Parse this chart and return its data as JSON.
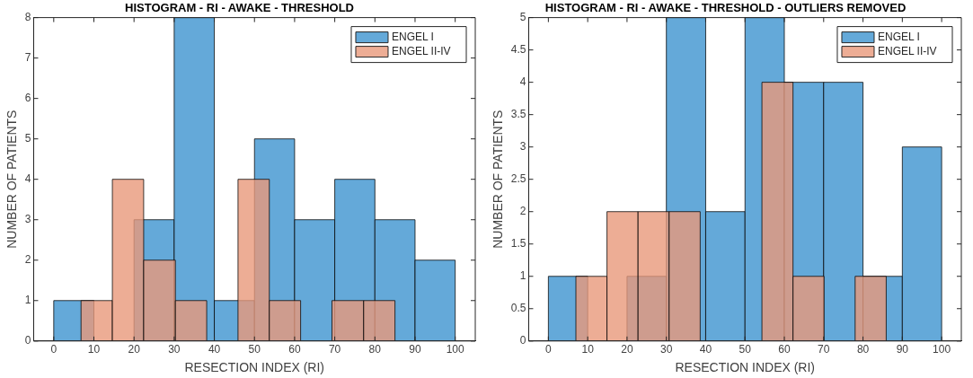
{
  "chart_data": [
    {
      "type": "histogram",
      "title": "HISTOGRAM - RI - AWAKE - THRESHOLD",
      "xlabel": "RESECTION INDEX (RI)",
      "ylabel": "NUMBER OF PATIENTS",
      "legend": "top right",
      "grid": false,
      "xlim": [
        -5,
        105
      ],
      "xticks": [
        0,
        10,
        20,
        30,
        40,
        50,
        60,
        70,
        80,
        90,
        100
      ],
      "ylim": [
        0,
        8
      ],
      "yticks": [
        0,
        1,
        2,
        3,
        4,
        5,
        6,
        7,
        8
      ],
      "bins": [
        0,
        10,
        20,
        30,
        40,
        50,
        60,
        70,
        80,
        90,
        100
      ],
      "series": [
        {
          "name": "ENGEL I",
          "color": "#64a9d9",
          "values": [
            1,
            0,
            3,
            8,
            1,
            5,
            3,
            4,
            3,
            2
          ]
        },
        {
          "name": "ENGEL II-IV",
          "color": "#e8987a",
          "bins": [
            6.8,
            14.6,
            22.4,
            30.3,
            38.1,
            45.9,
            53.7,
            61.5,
            69.3,
            77.2,
            85.0
          ],
          "values": [
            1,
            4,
            2,
            1,
            0,
            4,
            1,
            0,
            1,
            1
          ]
        }
      ]
    },
    {
      "type": "histogram",
      "title": "HISTOGRAM - RI - AWAKE - THRESHOLD - OUTLIERS REMOVED",
      "xlabel": "RESECTION INDEX (RI)",
      "ylabel": "NUMBER OF PATIENTS",
      "legend": "top right",
      "grid": false,
      "xlim": [
        -5,
        105
      ],
      "xticks": [
        0,
        10,
        20,
        30,
        40,
        50,
        60,
        70,
        80,
        90,
        100
      ],
      "ylim": [
        0,
        5
      ],
      "yticks": [
        0,
        0.5,
        1,
        1.5,
        2,
        2.5,
        3,
        3.5,
        4,
        4.5,
        5
      ],
      "bins": [
        0,
        10,
        20,
        30,
        40,
        50,
        60,
        70,
        80,
        90,
        100
      ],
      "series": [
        {
          "name": "ENGEL I",
          "color": "#64a9d9",
          "values": [
            1,
            0,
            1,
            5,
            2,
            5,
            4,
            4,
            1,
            3
          ]
        },
        {
          "name": "ENGEL II-IV",
          "color": "#e8987a",
          "bins": [
            7.0,
            14.9,
            22.8,
            30.7,
            38.6,
            46.4,
            54.3,
            62.2,
            70.1,
            78.0,
            85.9
          ],
          "values": [
            1,
            2,
            2,
            2,
            0,
            0,
            4,
            1,
            0,
            1
          ]
        }
      ]
    }
  ]
}
